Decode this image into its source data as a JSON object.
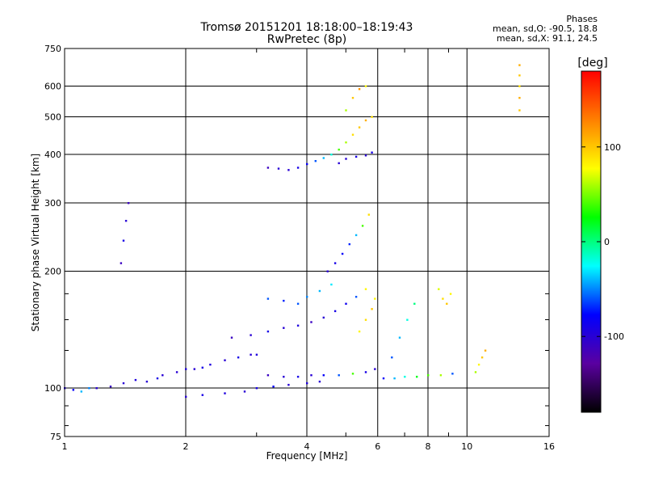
{
  "header": {
    "title": "Tromsø 20151201 18:18:00–18:19:43",
    "subtitle": "RwPretec (8p)"
  },
  "stats": {
    "heading": "Phases",
    "o_line": "mean, sd,O: -90.5, 18.8",
    "x_line": "mean, sd,X:  91.1, 24.5"
  },
  "colorbar": {
    "unit": "[deg]",
    "tick_labels": [
      "100",
      "0",
      "-100"
    ],
    "tick_values": [
      100,
      0,
      -100
    ],
    "range": [
      -180,
      180
    ],
    "colors": [
      "#000000",
      "#5a00a0",
      "#0000ff",
      "#00ffff",
      "#00ff00",
      "#ffff00",
      "#ff8000",
      "#ff0000"
    ]
  },
  "chart_data": {
    "type": "scatter",
    "xlabel": "Frequency [MHz]",
    "ylabel": "Stationary phase Virtual Height [km]",
    "xscale": "log",
    "yscale": "log",
    "xlim": [
      1,
      16
    ],
    "ylim": [
      75,
      750
    ],
    "x_ticks": [
      1,
      2,
      4,
      6,
      8,
      10,
      16
    ],
    "x_tick_labels": [
      "1",
      "2",
      "4",
      "6",
      "8",
      "10",
      "16"
    ],
    "y_ticks": [
      75,
      100,
      200,
      300,
      400,
      500,
      600,
      750
    ],
    "y_tick_labels": [
      "75",
      "100",
      "200",
      "300",
      "400",
      "500",
      "600",
      "750"
    ],
    "grid": true,
    "color_encodes": "phase [deg]",
    "traces": [
      {
        "x": [
          1.0,
          1.05,
          1.1,
          1.15,
          1.2,
          1.3,
          1.4,
          1.5,
          1.6,
          1.7
        ],
        "y": [
          100,
          99,
          98,
          100,
          100,
          101,
          103,
          105,
          104,
          106
        ],
        "phase": [
          -95,
          -80,
          -40,
          -50,
          -100,
          -110,
          -100,
          -95,
          -100,
          -90
        ]
      },
      {
        "x": [
          1.75,
          1.9,
          2.0,
          2.1,
          2.2,
          2.3,
          2.5,
          2.7,
          2.9,
          3.0
        ],
        "y": [
          108,
          110,
          112,
          112,
          113,
          115,
          118,
          120,
          122,
          122
        ],
        "phase": [
          -100,
          -100,
          -95,
          -100,
          -90,
          -95,
          -100,
          -90,
          -100,
          -95
        ]
      },
      {
        "x": [
          2.0,
          2.2,
          2.5,
          2.8,
          3.0,
          3.3,
          3.6,
          4.0,
          4.3
        ],
        "y": [
          95,
          96,
          97,
          98,
          100,
          101,
          102,
          103,
          104
        ],
        "phase": [
          -100,
          -90,
          -95,
          -100,
          -90,
          -80,
          -100,
          -95,
          -100
        ]
      },
      {
        "x": [
          3.2,
          3.5,
          3.8,
          4.1,
          4.4,
          4.8,
          5.2,
          5.6,
          5.9
        ],
        "y": [
          108,
          107,
          107,
          108,
          108,
          108,
          109,
          110,
          112
        ],
        "phase": [
          -110,
          -100,
          -90,
          -100,
          -80,
          -60,
          40,
          -90,
          -100
        ]
      },
      {
        "x": [
          6.2,
          6.6,
          7.0,
          7.5,
          8.0,
          8.6,
          9.2
        ],
        "y": [
          106,
          106,
          107,
          107,
          108,
          108,
          109
        ],
        "phase": [
          -80,
          -40,
          -20,
          20,
          40,
          60,
          -60
        ]
      },
      {
        "x": [
          2.6,
          2.9,
          3.2,
          3.5,
          3.8,
          4.1,
          4.4,
          4.7,
          5.0,
          5.3,
          5.6
        ],
        "y": [
          135,
          137,
          140,
          143,
          145,
          148,
          152,
          158,
          165,
          172,
          180
        ],
        "phase": [
          -110,
          -100,
          -90,
          -100,
          -95,
          -110,
          -100,
          -90,
          -85,
          -60,
          80
        ]
      },
      {
        "x": [
          3.2,
          3.5,
          3.8,
          4.0,
          4.3,
          4.6
        ],
        "y": [
          170,
          168,
          165,
          172,
          178,
          185
        ],
        "phase": [
          -60,
          -70,
          -60,
          -50,
          -40,
          -30
        ]
      },
      {
        "x": [
          4.5,
          4.7,
          4.9,
          5.1,
          5.3,
          5.5,
          5.7
        ],
        "y": [
          200,
          210,
          222,
          235,
          248,
          262,
          280
        ],
        "phase": [
          -100,
          -90,
          -80,
          -70,
          -40,
          40,
          90
        ]
      },
      {
        "x": [
          5.4,
          5.6,
          5.8,
          5.9
        ],
        "y": [
          140,
          150,
          160,
          170
        ],
        "phase": [
          80,
          90,
          100,
          80
        ]
      },
      {
        "x": [
          6.5,
          6.8,
          7.1,
          7.4
        ],
        "y": [
          120,
          135,
          150,
          165
        ],
        "phase": [
          -60,
          -40,
          -20,
          0
        ]
      },
      {
        "x": [
          3.2,
          3.4,
          3.6,
          3.8,
          4.0,
          4.2,
          4.4,
          4.6,
          4.8,
          5.0,
          5.2,
          5.4,
          5.6,
          5.8
        ],
        "y": [
          370,
          368,
          365,
          370,
          378,
          385,
          392,
          400,
          412,
          430,
          450,
          470,
          490,
          500
        ],
        "phase": [
          -110,
          -100,
          -100,
          -90,
          -80,
          -60,
          -40,
          -20,
          40,
          60,
          90,
          100,
          110,
          90
        ]
      },
      {
        "x": [
          4.8,
          5.0,
          5.3,
          5.6,
          5.8
        ],
        "y": [
          380,
          390,
          395,
          398,
          405
        ],
        "phase": [
          -100,
          -100,
          -90,
          -100,
          -90
        ]
      },
      {
        "x": [
          5.0,
          5.2,
          5.4,
          5.6
        ],
        "y": [
          520,
          560,
          590,
          600
        ],
        "phase": [
          60,
          100,
          120,
          80
        ]
      },
      {
        "x": [
          1.38,
          1.4,
          1.42,
          1.44
        ],
        "y": [
          210,
          240,
          270,
          300
        ],
        "phase": [
          -110,
          -90,
          -100,
          -110
        ]
      },
      {
        "x": [
          13.5,
          13.5,
          13.5,
          13.5,
          13.5
        ],
        "y": [
          520,
          560,
          600,
          640,
          680
        ],
        "phase": [
          100,
          110,
          90,
          100,
          110
        ]
      },
      {
        "x": [
          8.5,
          8.7,
          8.9,
          9.1
        ],
        "y": [
          180,
          170,
          165,
          175
        ],
        "phase": [
          70,
          90,
          100,
          80
        ]
      },
      {
        "x": [
          10.5,
          10.7,
          10.9,
          11.1
        ],
        "y": [
          110,
          115,
          120,
          125
        ],
        "phase": [
          60,
          80,
          100,
          110
        ]
      }
    ]
  }
}
